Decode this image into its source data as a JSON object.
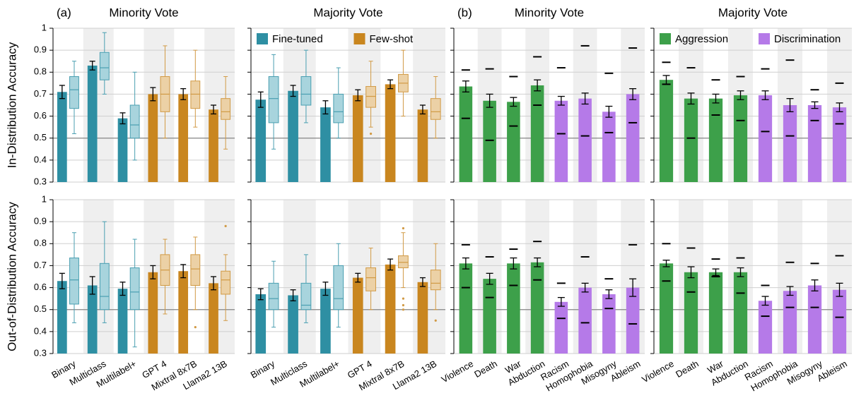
{
  "chart_data": [
    {
      "type": "barbox",
      "title": "Minority Vote",
      "panel_label": "(a)",
      "ylabel": "In-Distribution Accuracy",
      "ylim": [
        0.3,
        1
      ],
      "yticks": [
        0.3,
        0.4,
        0.5,
        0.6,
        0.7,
        0.8,
        0.9,
        1
      ],
      "ytick_labels": true,
      "hline": 0.5,
      "grid": true,
      "series": [
        {
          "color": "#2e8fa3",
          "box_color": "#a8d4dd",
          "box_edge": "#4a9fb1",
          "values": [
            0.71,
            0.83,
            0.59,
            null,
            null,
            null
          ],
          "errors": [
            0.03,
            0.02,
            0.025,
            null,
            null,
            null
          ],
          "boxes": [
            {
              "min": 0.52,
              "q1": 0.635,
              "median": 0.72,
              "q3": 0.78,
              "max": 0.85
            },
            {
              "min": 0.7,
              "q1": 0.765,
              "median": 0.82,
              "q3": 0.89,
              "max": 0.98
            },
            {
              "min": 0.4,
              "q1": 0.5,
              "median": 0.56,
              "q3": 0.65,
              "max": 0.8
            },
            null,
            null,
            null
          ]
        },
        {
          "color": "#c9861f",
          "box_color": "#ecd1a6",
          "box_edge": "#d19a45",
          "values": [
            null,
            null,
            null,
            0.7,
            0.7,
            0.63
          ],
          "errors": [
            null,
            null,
            null,
            0.03,
            0.025,
            0.02
          ],
          "boxes": [
            null,
            null,
            null,
            {
              "min": 0.5,
              "q1": 0.62,
              "median": 0.7,
              "q3": 0.78,
              "max": 0.92
            },
            {
              "min": 0.55,
              "q1": 0.635,
              "median": 0.7,
              "q3": 0.76,
              "max": 0.9
            },
            {
              "min": 0.45,
              "q1": 0.585,
              "median": 0.62,
              "q3": 0.68,
              "max": 0.78
            }
          ]
        }
      ]
    },
    {
      "type": "barbox",
      "title": "Majority Vote",
      "ylim": [
        0.3,
        1
      ],
      "yticks": [
        0.3,
        0.4,
        0.5,
        0.6,
        0.7,
        0.8,
        0.9,
        1
      ],
      "ytick_labels": false,
      "hline": 0.5,
      "grid": true,
      "legend": "top",
      "series": [
        {
          "name": "Fine-tuned",
          "color": "#2e8fa3",
          "box_color": "#a8d4dd",
          "box_edge": "#4a9fb1",
          "values": [
            0.675,
            0.715,
            0.64,
            null,
            null,
            null
          ],
          "errors": [
            0.035,
            0.025,
            0.03,
            null,
            null,
            null
          ],
          "boxes": [
            {
              "min": 0.45,
              "q1": 0.57,
              "median": 0.68,
              "q3": 0.78,
              "max": 0.88
            },
            {
              "min": 0.57,
              "q1": 0.65,
              "median": 0.7,
              "q3": 0.78,
              "max": 0.9
            },
            {
              "min": 0.5,
              "q1": 0.57,
              "median": 0.62,
              "q3": 0.7,
              "max": 0.82
            },
            null,
            null,
            null
          ]
        },
        {
          "name": "Few-shot",
          "color": "#c9861f",
          "box_color": "#ecd1a6",
          "box_edge": "#d19a45",
          "values": [
            null,
            null,
            null,
            0.695,
            0.745,
            0.63
          ],
          "errors": [
            null,
            null,
            null,
            0.025,
            0.02,
            0.02
          ],
          "boxes": [
            null,
            null,
            null,
            {
              "min": 0.55,
              "q1": 0.64,
              "median": 0.69,
              "q3": 0.735,
              "max": 0.85,
              "outliers": [
                0.52
              ]
            },
            {
              "min": 0.6,
              "q1": 0.71,
              "median": 0.75,
              "q3": 0.79,
              "max": 0.9
            },
            {
              "min": 0.5,
              "q1": 0.585,
              "median": 0.62,
              "q3": 0.68,
              "max": 0.78
            }
          ]
        }
      ]
    },
    {
      "type": "bar",
      "title": "Minority Vote",
      "panel_label": "(b)",
      "ylim": [
        0.3,
        1
      ],
      "yticks": [
        0.3,
        0.4,
        0.5,
        0.6,
        0.7,
        0.8,
        0.9,
        1
      ],
      "ytick_labels": false,
      "hline": 0.5,
      "grid": true,
      "series": [
        {
          "color": "#3da04a",
          "values": [
            0.735,
            0.67,
            0.665,
            0.74,
            null,
            null,
            null,
            null
          ],
          "errors": [
            0.025,
            0.03,
            0.02,
            0.025,
            null,
            null,
            null,
            null
          ],
          "markers": [
            [
              0.59,
              0.81
            ],
            [
              0.49,
              0.815
            ],
            [
              0.555,
              0.78
            ],
            [
              0.65,
              0.87
            ],
            null,
            null,
            null,
            null
          ]
        },
        {
          "color": "#b57ae8",
          "values": [
            null,
            null,
            null,
            null,
            0.67,
            0.68,
            0.62,
            0.7
          ],
          "errors": [
            null,
            null,
            null,
            null,
            0.02,
            0.025,
            0.025,
            0.025
          ],
          "markers": [
            null,
            null,
            null,
            null,
            [
              0.52,
              0.82
            ],
            [
              0.51,
              0.92
            ],
            [
              0.525,
              0.795
            ],
            [
              0.57,
              0.91
            ]
          ]
        }
      ]
    },
    {
      "type": "bar",
      "title": "Majority Vote",
      "ylim": [
        0.3,
        1
      ],
      "yticks": [
        0.3,
        0.4,
        0.5,
        0.6,
        0.7,
        0.8,
        0.9,
        1
      ],
      "ytick_labels": false,
      "hline": 0.5,
      "grid": true,
      "legend": "top",
      "series": [
        {
          "name": "Aggression",
          "color": "#3da04a",
          "values": [
            0.765,
            0.68,
            0.68,
            0.695,
            null,
            null,
            null,
            null
          ],
          "errors": [
            0.02,
            0.025,
            0.02,
            0.02,
            null,
            null,
            null,
            null
          ],
          "markers": [
            [
              0.745,
              0.845
            ],
            [
              0.5,
              0.82
            ],
            [
              0.605,
              0.765
            ],
            [
              0.58,
              0.78
            ],
            null,
            null,
            null,
            null
          ]
        },
        {
          "name": "Discrimination",
          "color": "#b57ae8",
          "values": [
            null,
            null,
            null,
            null,
            0.695,
            0.65,
            0.65,
            0.64
          ],
          "errors": [
            null,
            null,
            null,
            null,
            0.02,
            0.03,
            0.015,
            0.02
          ],
          "markers": [
            null,
            null,
            null,
            null,
            [
              0.53,
              0.815
            ],
            [
              0.51,
              0.855
            ],
            [
              0.58,
              0.72
            ],
            [
              0.565,
              0.75
            ]
          ]
        }
      ]
    },
    {
      "type": "barbox",
      "ylabel": "Out-of-Distribution Accuracy",
      "categories": [
        "Binary",
        "Multiclass",
        "Multilabel+",
        "GPT 4",
        "Mixtral 8x7B",
        "Llama2 13B"
      ],
      "ylim": [
        0.3,
        1
      ],
      "yticks": [
        0.3,
        0.4,
        0.5,
        0.6,
        0.7,
        0.8,
        0.9,
        1
      ],
      "ytick_labels": true,
      "hline": 0.5,
      "grid": true,
      "series": [
        {
          "color": "#2e8fa3",
          "box_color": "#a8d4dd",
          "box_edge": "#4a9fb1",
          "values": [
            0.63,
            0.61,
            0.595,
            null,
            null,
            null
          ],
          "errors": [
            0.035,
            0.04,
            0.03,
            null,
            null,
            null
          ],
          "boxes": [
            {
              "min": 0.44,
              "q1": 0.525,
              "median": 0.635,
              "q3": 0.735,
              "max": 0.85
            },
            {
              "min": 0.44,
              "q1": 0.5,
              "median": 0.56,
              "q3": 0.71,
              "max": 0.9
            },
            {
              "min": 0.33,
              "q1": 0.5,
              "median": 0.58,
              "q3": 0.69,
              "max": 0.82
            },
            null,
            null,
            null
          ]
        },
        {
          "color": "#c9861f",
          "box_color": "#ecd1a6",
          "box_edge": "#d19a45",
          "values": [
            null,
            null,
            null,
            0.67,
            0.675,
            0.62
          ],
          "errors": [
            null,
            null,
            null,
            0.03,
            0.03,
            0.03
          ],
          "boxes": [
            null,
            null,
            null,
            {
              "min": 0.48,
              "q1": 0.61,
              "median": 0.68,
              "q3": 0.75,
              "max": 0.82
            },
            {
              "min": 0.5,
              "q1": 0.61,
              "median": 0.685,
              "q3": 0.75,
              "max": 0.83,
              "outliers": [
                0.42
              ]
            },
            {
              "min": 0.45,
              "q1": 0.57,
              "median": 0.635,
              "q3": 0.675,
              "max": 0.75,
              "outliers": [
                0.88
              ]
            }
          ]
        }
      ]
    },
    {
      "type": "barbox",
      "categories": [
        "Binary",
        "Multiclass",
        "Multilabel+",
        "GPT 4",
        "Mixtral 8x7B",
        "Llama2 13B"
      ],
      "ylim": [
        0.3,
        1
      ],
      "yticks": [
        0.3,
        0.4,
        0.5,
        0.6,
        0.7,
        0.8,
        0.9,
        1
      ],
      "ytick_labels": false,
      "hline": 0.5,
      "grid": true,
      "series": [
        {
          "color": "#2e8fa3",
          "box_color": "#a8d4dd",
          "box_edge": "#4a9fb1",
          "values": [
            0.57,
            0.565,
            0.595,
            null,
            null,
            null
          ],
          "errors": [
            0.025,
            0.025,
            0.03,
            null,
            null,
            null
          ],
          "boxes": [
            {
              "min": 0.42,
              "q1": 0.5,
              "median": 0.55,
              "q3": 0.62,
              "max": 0.72
            },
            {
              "min": 0.44,
              "q1": 0.5,
              "median": 0.52,
              "q3": 0.62,
              "max": 0.75
            },
            {
              "min": 0.42,
              "q1": 0.5,
              "median": 0.55,
              "q3": 0.7,
              "max": 0.8
            },
            null,
            null,
            null
          ]
        },
        {
          "color": "#c9861f",
          "box_color": "#ecd1a6",
          "box_edge": "#d19a45",
          "values": [
            null,
            null,
            null,
            0.645,
            0.705,
            0.625
          ],
          "errors": [
            null,
            null,
            null,
            0.02,
            0.025,
            0.02
          ],
          "boxes": [
            null,
            null,
            null,
            {
              "min": 0.5,
              "q1": 0.585,
              "median": 0.645,
              "q3": 0.69,
              "max": 0.78
            },
            {
              "min": 0.6,
              "q1": 0.69,
              "median": 0.715,
              "q3": 0.745,
              "max": 0.85,
              "outliers": [
                0.5,
                0.52,
                0.55,
                0.87
              ]
            },
            {
              "min": 0.5,
              "q1": 0.59,
              "median": 0.62,
              "q3": 0.68,
              "max": 0.8,
              "outliers": [
                0.45
              ]
            }
          ]
        }
      ]
    },
    {
      "type": "bar",
      "categories": [
        "Violence",
        "Death",
        "War",
        "Abduction",
        "Racism",
        "Homophobia",
        "Misogyny",
        "Ableism"
      ],
      "ylim": [
        0.3,
        1
      ],
      "yticks": [
        0.3,
        0.4,
        0.5,
        0.6,
        0.7,
        0.8,
        0.9,
        1
      ],
      "ytick_labels": false,
      "hline": 0.5,
      "grid": true,
      "series": [
        {
          "color": "#3da04a",
          "values": [
            0.71,
            0.64,
            0.71,
            0.715,
            null,
            null,
            null,
            null
          ],
          "errors": [
            0.025,
            0.025,
            0.025,
            0.02,
            null,
            null,
            null,
            null
          ],
          "markers": [
            [
              0.6,
              0.795
            ],
            [
              0.555,
              0.74
            ],
            [
              0.61,
              0.775
            ],
            [
              0.635,
              0.81
            ],
            null,
            null,
            null,
            null
          ]
        },
        {
          "color": "#b57ae8",
          "values": [
            null,
            null,
            null,
            null,
            0.535,
            0.6,
            0.57,
            0.6
          ],
          "errors": [
            null,
            null,
            null,
            null,
            0.02,
            0.02,
            0.02,
            0.04
          ],
          "markers": [
            null,
            null,
            null,
            null,
            [
              0.46,
              0.62
            ],
            [
              0.44,
              0.74
            ],
            [
              0.505,
              0.64
            ],
            [
              0.435,
              0.795
            ]
          ]
        }
      ]
    },
    {
      "type": "bar",
      "categories": [
        "Violence",
        "Death",
        "War",
        "Abduction",
        "Racism",
        "Homophobia",
        "Misogyny",
        "Ableism"
      ],
      "ylim": [
        0.3,
        1
      ],
      "yticks": [
        0.3,
        0.4,
        0.5,
        0.6,
        0.7,
        0.8,
        0.9,
        1
      ],
      "ytick_labels": false,
      "hline": 0.5,
      "grid": true,
      "series": [
        {
          "color": "#3da04a",
          "values": [
            0.71,
            0.67,
            0.67,
            0.67,
            null,
            null,
            null,
            null
          ],
          "errors": [
            0.015,
            0.025,
            0.015,
            0.02,
            null,
            null,
            null,
            null
          ],
          "markers": [
            [
              0.63,
              0.8
            ],
            [
              0.58,
              0.78
            ],
            [
              0.65,
              0.73
            ],
            [
              0.575,
              0.735
            ],
            null,
            null,
            null,
            null
          ]
        },
        {
          "color": "#b57ae8",
          "values": [
            null,
            null,
            null,
            null,
            0.54,
            0.585,
            0.61,
            0.59
          ],
          "errors": [
            null,
            null,
            null,
            null,
            0.02,
            0.02,
            0.025,
            0.03
          ],
          "markers": [
            null,
            null,
            null,
            null,
            [
              0.47,
              0.61
            ],
            [
              0.51,
              0.715
            ],
            [
              0.51,
              0.71
            ],
            [
              0.465,
              0.745
            ]
          ]
        }
      ]
    }
  ]
}
